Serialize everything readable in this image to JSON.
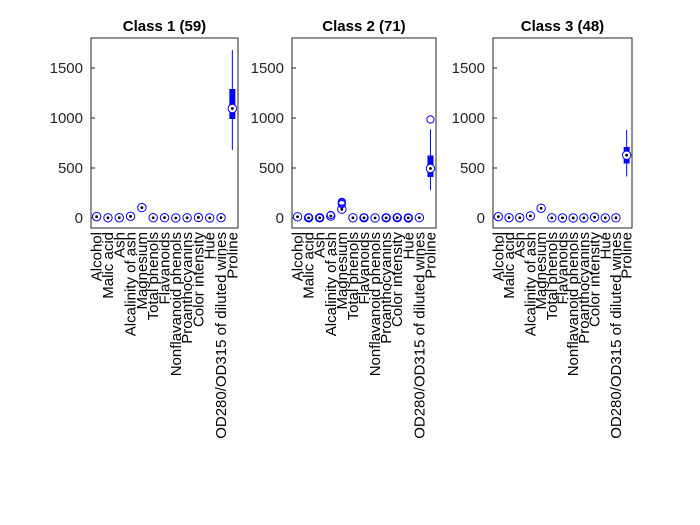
{
  "chart_data": {
    "type": "box",
    "categories": [
      "Alcohol",
      "Malic acid",
      "Ash",
      "Alcalinity of ash",
      "Magnesium",
      "Total phenols",
      "Flavanoids",
      "Nonflavanoid phenols",
      "Proanthocyanins",
      "Color intensity",
      "Hue",
      "OD280/OD315 of diluted wines",
      "Proline"
    ],
    "ylim": [
      -100,
      1800
    ],
    "yticks": [
      0,
      500,
      1000,
      1500
    ],
    "colors": {
      "box": "#0000ff",
      "median_dot": "#000000"
    },
    "panels": [
      {
        "title": "Class 1 (59)",
        "series": [
          {
            "q1": 13.4,
            "median": 13.7,
            "q3": 14.1,
            "lower": 12.9,
            "upper": 14.8,
            "outliers": []
          },
          {
            "q1": 1.6,
            "median": 1.9,
            "q3": 2.3,
            "lower": 1.4,
            "upper": 4.0,
            "outliers": []
          },
          {
            "q1": 2.3,
            "median": 2.4,
            "q3": 2.6,
            "lower": 2.0,
            "upper": 3.2,
            "outliers": []
          },
          {
            "q1": 16,
            "median": 16.8,
            "q3": 18,
            "lower": 11.2,
            "upper": 25,
            "outliers": []
          },
          {
            "q1": 98,
            "median": 104,
            "q3": 114,
            "lower": 89,
            "upper": 132,
            "outliers": []
          },
          {
            "q1": 2.6,
            "median": 2.8,
            "q3": 3.0,
            "lower": 2.2,
            "upper": 3.9,
            "outliers": []
          },
          {
            "q1": 2.7,
            "median": 2.95,
            "q3": 3.2,
            "lower": 2.2,
            "upper": 3.9,
            "outliers": []
          },
          {
            "q1": 0.26,
            "median": 0.29,
            "q3": 0.32,
            "lower": 0.17,
            "upper": 0.5,
            "outliers": []
          },
          {
            "q1": 1.7,
            "median": 2.0,
            "q3": 2.1,
            "lower": 1.25,
            "upper": 2.96,
            "outliers": []
          },
          {
            "q1": 4.6,
            "median": 5.4,
            "q3": 6.2,
            "lower": 3.5,
            "upper": 8.9,
            "outliers": []
          },
          {
            "q1": 1.0,
            "median": 1.07,
            "q3": 1.1,
            "lower": 0.82,
            "upper": 1.28,
            "outliers": []
          },
          {
            "q1": 2.9,
            "median": 3.2,
            "q3": 3.4,
            "lower": 2.5,
            "upper": 4.0,
            "outliers": []
          },
          {
            "q1": 990,
            "median": 1095,
            "q3": 1290,
            "lower": 680,
            "upper": 1680,
            "outliers": []
          }
        ]
      },
      {
        "title": "Class 2 (71)",
        "series": [
          {
            "q1": 11.9,
            "median": 12.3,
            "q3": 12.5,
            "lower": 11.0,
            "upper": 13.9,
            "outliers": []
          },
          {
            "q1": 1.3,
            "median": 1.6,
            "q3": 2.1,
            "lower": 0.74,
            "upper": 3.5,
            "outliers": [
              5.8,
              4.4
            ]
          },
          {
            "q1": 2.1,
            "median": 2.2,
            "q3": 2.4,
            "lower": 1.7,
            "upper": 2.9,
            "outliers": [
              3.2,
              1.36
            ]
          },
          {
            "q1": 18,
            "median": 20,
            "q3": 22,
            "lower": 10.6,
            "upper": 28.5,
            "outliers": [
              30
            ]
          },
          {
            "q1": 85,
            "median": 88,
            "q3": 99,
            "lower": 70,
            "upper": 119,
            "outliers": [
              162,
              151,
              139
            ]
          },
          {
            "q1": 1.9,
            "median": 2.2,
            "q3": 2.6,
            "lower": 1.1,
            "upper": 3.5,
            "outliers": []
          },
          {
            "q1": 1.6,
            "median": 2.0,
            "q3": 2.5,
            "lower": 0.57,
            "upper": 3.75,
            "outliers": [
              5.08
            ]
          },
          {
            "q1": 0.27,
            "median": 0.37,
            "q3": 0.43,
            "lower": 0.13,
            "upper": 0.66,
            "outliers": []
          },
          {
            "q1": 1.35,
            "median": 1.6,
            "q3": 1.9,
            "lower": 0.41,
            "upper": 2.7,
            "outliers": [
              3.58
            ]
          },
          {
            "q1": 2.5,
            "median": 2.9,
            "q3": 3.4,
            "lower": 1.28,
            "upper": 4.6,
            "outliers": [
              6.0
            ]
          },
          {
            "q1": 0.9,
            "median": 1.04,
            "q3": 1.2,
            "lower": 0.69,
            "upper": 1.45,
            "outliers": [
              1.71
            ]
          },
          {
            "q1": 2.4,
            "median": 2.8,
            "q3": 3.2,
            "lower": 1.59,
            "upper": 3.69,
            "outliers": []
          },
          {
            "q1": 410,
            "median": 495,
            "q3": 625,
            "lower": 278,
            "upper": 886,
            "outliers": [
              985
            ]
          }
        ]
      },
      {
        "title": "Class 3 (48)",
        "series": [
          {
            "q1": 12.8,
            "median": 13.2,
            "q3": 13.5,
            "lower": 12.2,
            "upper": 14.3,
            "outliers": []
          },
          {
            "q1": 2.6,
            "median": 3.3,
            "q3": 4.0,
            "lower": 1.24,
            "upper": 5.65,
            "outliers": []
          },
          {
            "q1": 2.3,
            "median": 2.4,
            "q3": 2.6,
            "lower": 2.1,
            "upper": 2.86,
            "outliers": []
          },
          {
            "q1": 20,
            "median": 21,
            "q3": 23,
            "lower": 17.5,
            "upper": 27,
            "outliers": []
          },
          {
            "q1": 89,
            "median": 97,
            "q3": 106,
            "lower": 80,
            "upper": 123,
            "outliers": []
          },
          {
            "q1": 1.4,
            "median": 1.6,
            "q3": 1.8,
            "lower": 0.98,
            "upper": 2.8,
            "outliers": []
          },
          {
            "q1": 0.6,
            "median": 0.7,
            "q3": 0.9,
            "lower": 0.34,
            "upper": 1.57,
            "outliers": []
          },
          {
            "q1": 0.4,
            "median": 0.47,
            "q3": 0.53,
            "lower": 0.17,
            "upper": 0.63,
            "outliers": []
          },
          {
            "q1": 0.86,
            "median": 1.1,
            "q3": 1.35,
            "lower": 0.55,
            "upper": 2.7,
            "outliers": []
          },
          {
            "q1": 5.7,
            "median": 7.5,
            "q3": 9.2,
            "lower": 3.85,
            "upper": 13,
            "outliers": []
          },
          {
            "q1": 0.6,
            "median": 0.68,
            "q3": 0.75,
            "lower": 0.48,
            "upper": 0.96,
            "outliers": []
          },
          {
            "q1": 1.6,
            "median": 1.7,
            "q3": 1.8,
            "lower": 1.27,
            "upper": 2.47,
            "outliers": []
          },
          {
            "q1": 545,
            "median": 628,
            "q3": 710,
            "lower": 415,
            "upper": 880,
            "outliers": []
          }
        ]
      }
    ]
  }
}
